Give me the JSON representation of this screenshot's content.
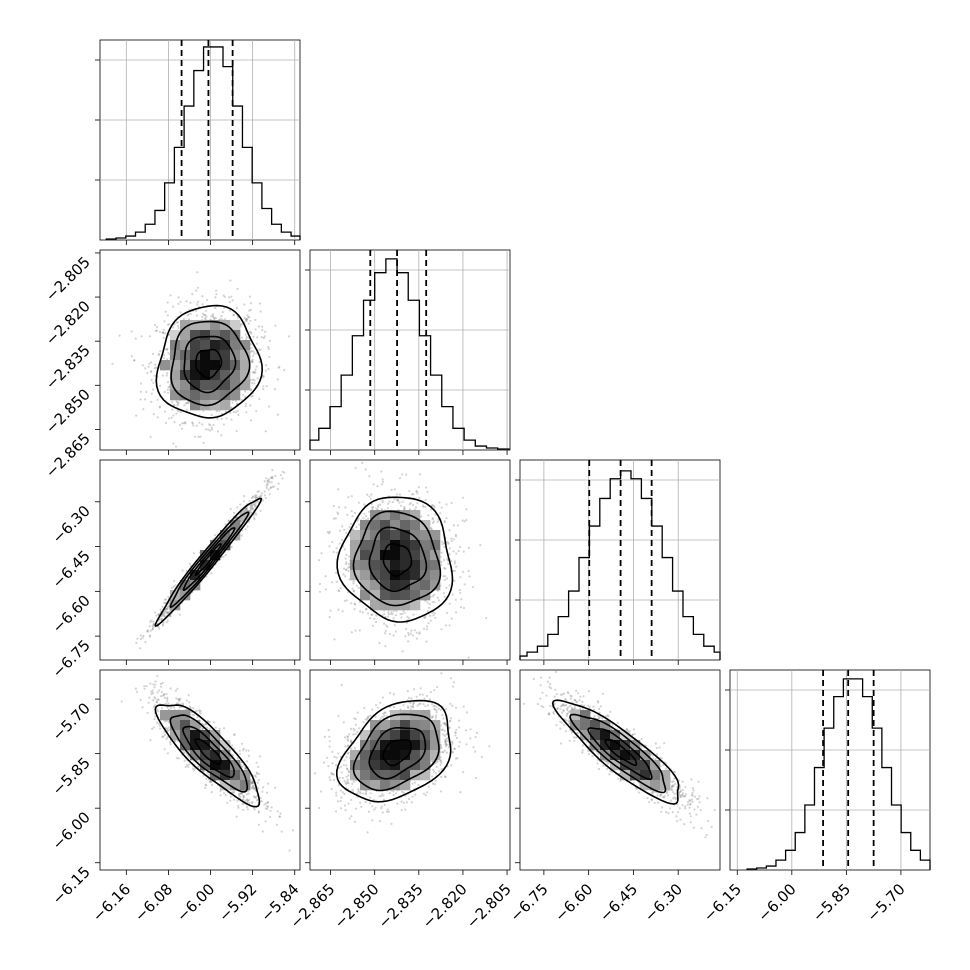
{
  "chart_data": {
    "type": "corner",
    "parameters": [
      {
        "index": 0,
        "range": [
          -6.21,
          -5.83
        ],
        "quantiles": [
          -6.055,
          -6.004,
          -5.958
        ],
        "ticks": [
          -6.16,
          -6.08,
          -6.0,
          -5.92,
          -5.84
        ],
        "tick_labels": [
          "−6.16",
          "−6.08",
          "−6.00",
          "−5.92",
          "−5.84"
        ]
      },
      {
        "index": 1,
        "range": [
          -2.872,
          -2.804
        ],
        "quantiles": [
          -2.8515,
          -2.8424,
          -2.8325
        ],
        "ticks": [
          -2.865,
          -2.85,
          -2.835,
          -2.82,
          -2.805
        ],
        "tick_labels": [
          "−2.865",
          "−2.850",
          "−2.835",
          "−2.820",
          "−2.805"
        ]
      },
      {
        "index": 2,
        "range": [
          -6.83,
          -6.16
        ],
        "quantiles": [
          -6.598,
          -6.493,
          -6.389
        ],
        "ticks": [
          -6.75,
          -6.6,
          -6.45,
          -6.3
        ],
        "tick_labels": [
          "−6.75",
          "−6.60",
          "−6.45",
          "−6.30"
        ]
      },
      {
        "index": 3,
        "range": [
          -6.17,
          -5.62
        ],
        "quantiles": [
          -5.914,
          -5.845,
          -5.775
        ],
        "ticks": [
          -6.15,
          -6.0,
          -5.85,
          -5.7
        ],
        "tick_labels": [
          "−6.15",
          "−6.00",
          "−5.85",
          "−5.70"
        ]
      }
    ],
    "histograms": [
      {
        "param": 0,
        "counts": [
          0.5,
          1,
          2,
          4,
          8,
          15,
          29,
          47,
          68,
          86,
          98,
          98,
          88,
          68,
          47,
          29,
          16,
          8,
          4,
          2,
          1
        ]
      },
      {
        "param": 1,
        "counts": [
          1,
          2,
          5,
          11,
          22,
          38,
          58,
          76,
          90,
          97,
          90,
          76,
          58,
          38,
          22,
          11,
          5,
          2,
          1,
          0.5
        ]
      },
      {
        "param": 2,
        "counts": [
          0.5,
          1,
          2,
          4,
          7,
          13,
          22,
          35,
          52,
          68,
          82,
          92,
          96,
          92,
          82,
          68,
          52,
          35,
          22,
          13,
          7,
          4,
          2,
          1
        ]
      },
      {
        "param": 3,
        "counts": [
          0.5,
          1,
          2,
          5,
          10,
          19,
          33,
          52,
          72,
          88,
          97,
          97,
          88,
          72,
          52,
          33,
          19,
          10,
          5,
          2,
          1
        ]
      }
    ],
    "pairs": [
      {
        "x": 0,
        "y": 1,
        "correlation": 0.05
      },
      {
        "x": 0,
        "y": 2,
        "correlation": 0.98
      },
      {
        "x": 1,
        "y": 2,
        "correlation": -0.05
      },
      {
        "x": 0,
        "y": 3,
        "correlation": -0.85
      },
      {
        "x": 1,
        "y": 3,
        "correlation": 0.35
      },
      {
        "x": 2,
        "y": 3,
        "correlation": -0.88
      }
    ],
    "contour_levels_sigma": [
      0.5,
      1.0,
      1.5,
      2.0
    ],
    "grid": true,
    "colors": {
      "line": "#000000",
      "points": "#808080",
      "grid": "#b0b0b0"
    }
  }
}
